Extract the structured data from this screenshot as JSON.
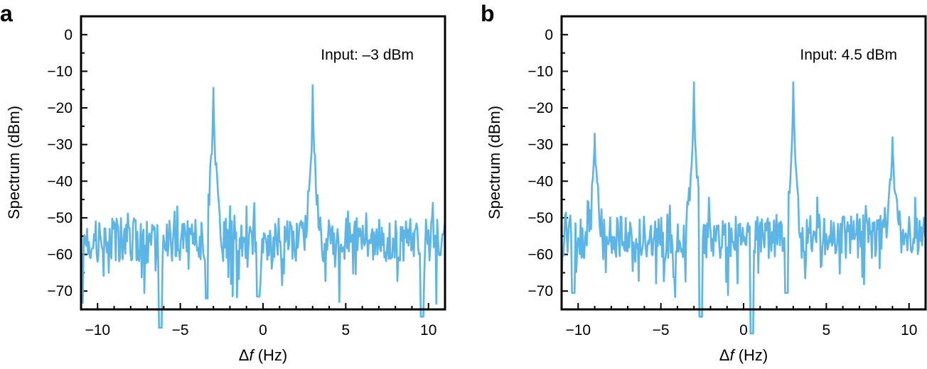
{
  "chart_data": [
    {
      "panel": "a",
      "type": "line",
      "annotation": "Input: –3 dBm",
      "xlabel_symbol": "Δ",
      "xlabel_var": "f",
      "xlabel_unit": " (Hz)",
      "ylabel": "Spectrum (dBm)",
      "xlim": [
        -11,
        11
      ],
      "ylim": [
        -75,
        5
      ],
      "xticks": [
        -10,
        -5,
        0,
        5,
        10
      ],
      "xtick_labels": [
        "−10",
        "−5",
        "0",
        "5",
        "10"
      ],
      "yticks": [
        0,
        -10,
        -20,
        -30,
        -40,
        -50,
        -60,
        -70
      ],
      "ytick_labels": [
        "0",
        "−10",
        "−20",
        "−30",
        "−40",
        "−50",
        "−60",
        "−70"
      ],
      "noise_floor": -56,
      "peaks": [
        {
          "x": -3,
          "y": -14.5
        },
        {
          "x": 3,
          "y": -13.8
        }
      ],
      "dips": [
        {
          "x": -6.2,
          "y": -80
        },
        {
          "x": 9.6,
          "y": -77
        },
        {
          "x": -3.4,
          "y": -72
        },
        {
          "x": -0.3,
          "y": -71.5
        }
      ],
      "series_color": "#5BB5E6"
    },
    {
      "panel": "b",
      "type": "line",
      "annotation": "Input: 4.5 dBm",
      "xlabel_symbol": "Δ",
      "xlabel_var": "f",
      "xlabel_unit": " (Hz)",
      "ylabel": "Spectrum (dBm)",
      "xlim": [
        -11,
        11
      ],
      "ylim": [
        -75,
        5
      ],
      "xticks": [
        -10,
        -5,
        0,
        5,
        10
      ],
      "xtick_labels": [
        "−10",
        "−5",
        "0",
        "5",
        "10"
      ],
      "yticks": [
        0,
        -10,
        -20,
        -30,
        -40,
        -50,
        -60,
        -70
      ],
      "ytick_labels": [
        "0",
        "−10",
        "−20",
        "−30",
        "−40",
        "−50",
        "−60",
        "−70"
      ],
      "noise_floor": -55,
      "peaks": [
        {
          "x": -9,
          "y": -27
        },
        {
          "x": -3,
          "y": -13
        },
        {
          "x": 3,
          "y": -13
        },
        {
          "x": 9,
          "y": -28
        }
      ],
      "dips": [
        {
          "x": -10.3,
          "y": -70.5
        },
        {
          "x": -2.6,
          "y": -77
        },
        {
          "x": 0.5,
          "y": -83
        },
        {
          "x": 2.6,
          "y": -70.5
        }
      ],
      "series_color": "#5BB5E6"
    }
  ]
}
